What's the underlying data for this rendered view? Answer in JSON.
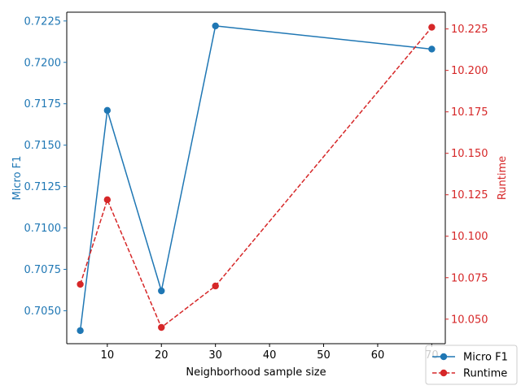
{
  "chart_data": {
    "type": "line",
    "xlabel": "Neighborhood sample size",
    "x_ticks": [
      10,
      20,
      30,
      40,
      50,
      60,
      70
    ],
    "xlim": [
      2.5,
      72.5
    ],
    "grid": false,
    "legend_position": "bottom-right",
    "axes": {
      "left": {
        "label": "Micro F1",
        "color": "#1f77b4",
        "ylim": [
          0.70301,
          0.72303
        ],
        "ticks": [
          "0.7050",
          "0.7075",
          "0.7100",
          "0.7125",
          "0.7150",
          "0.7175",
          "0.7200",
          "0.7225"
        ]
      },
      "right": {
        "label": "Runtime",
        "color": "#d62728",
        "ylim": [
          10.0352,
          10.2351
        ],
        "ticks": [
          "10.050",
          "10.075",
          "10.100",
          "10.125",
          "10.150",
          "10.175",
          "10.200",
          "10.225"
        ]
      }
    },
    "series": [
      {
        "name": "Micro F1",
        "axis": "left",
        "color": "#1f77b4",
        "line_style": "solid",
        "marker": "circle",
        "x": [
          5,
          10,
          20,
          30,
          70
        ],
        "y": [
          0.7038,
          0.7171,
          0.7062,
          0.7222,
          0.7208
        ]
      },
      {
        "name": "Runtime",
        "axis": "right",
        "color": "#d62728",
        "line_style": "dashed",
        "marker": "circle",
        "x": [
          5,
          10,
          20,
          30,
          70
        ],
        "y": [
          10.071,
          10.122,
          10.045,
          10.07,
          10.226
        ]
      }
    ]
  }
}
